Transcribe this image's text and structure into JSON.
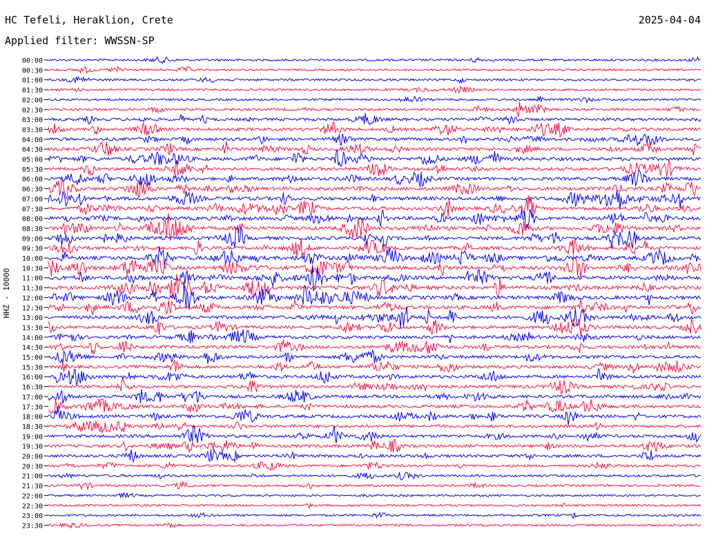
{
  "header": {
    "station": "HC Tefeli, Heraklion, Crete",
    "date": "2025-04-04",
    "filter": "Applied filter: WWSSN-SP"
  },
  "colors": {
    "odd_trace": "#0000ee",
    "even_trace": "#ee1144"
  },
  "chart_data": {
    "type": "line",
    "title": "HC Tefeli, Heraklion, Crete",
    "ylabel": "HHZ - 10000",
    "trace_colors": [
      "#0000ee",
      "#ee1144"
    ],
    "rows": [
      "00:00",
      "00:30",
      "01:00",
      "01:30",
      "02:00",
      "02:30",
      "03:00",
      "03:30",
      "04:00",
      "04:30",
      "05:00",
      "05:30",
      "06:00",
      "06:30",
      "07:00",
      "07:30",
      "08:00",
      "08:30",
      "09:00",
      "09:30",
      "10:00",
      "10:30",
      "11:00",
      "11:30",
      "12:00",
      "12:30",
      "13:00",
      "13:30",
      "14:00",
      "14:30",
      "15:00",
      "15:30",
      "16:00",
      "16:30",
      "17:00",
      "17:30",
      "18:00",
      "18:30",
      "19:00",
      "19:30",
      "20:00",
      "20:30",
      "21:00",
      "21:30",
      "22:00",
      "22:30",
      "23:00",
      "23:30"
    ],
    "activity": [
      0.15,
      0.12,
      0.15,
      0.15,
      0.15,
      0.3,
      0.45,
      0.55,
      0.5,
      0.6,
      0.7,
      0.6,
      0.6,
      0.7,
      0.75,
      0.75,
      0.75,
      0.75,
      0.7,
      0.65,
      0.8,
      0.8,
      0.85,
      0.85,
      0.8,
      0.75,
      0.7,
      0.65,
      0.6,
      0.6,
      0.55,
      0.55,
      0.55,
      0.55,
      0.55,
      0.55,
      0.55,
      0.5,
      0.5,
      0.5,
      0.45,
      0.3,
      0.25,
      0.2,
      0.1,
      0.1,
      0.15,
      0.1
    ]
  }
}
